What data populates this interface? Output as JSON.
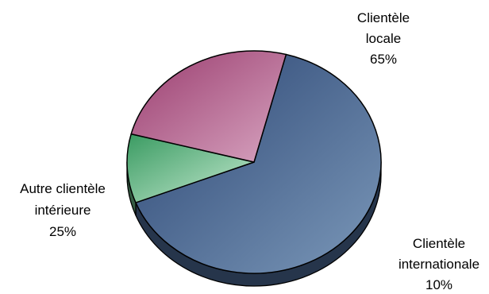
{
  "chart_data": {
    "type": "pie",
    "style": "3d",
    "slices": [
      {
        "label_lines": [
          "Clientèle",
          "locale"
        ],
        "pct_label": "65%",
        "value": 65,
        "color": "#4f6e9c"
      },
      {
        "label_lines": [
          "Clientèle",
          "internationale"
        ],
        "pct_label": "10%",
        "value": 10,
        "color": "#6fc08c"
      },
      {
        "label_lines": [
          "Autre clientèle",
          "intérieure"
        ],
        "pct_label": "25%",
        "value": 25,
        "color": "#b86590"
      }
    ]
  }
}
